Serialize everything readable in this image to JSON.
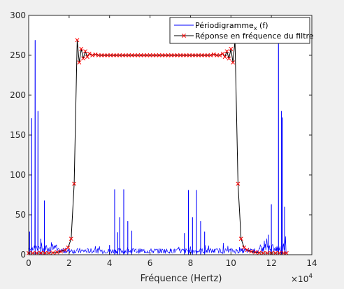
{
  "chart_data": {
    "type": "line",
    "xlabel": "Fréquence (Hertz)",
    "x_exponent_label": "×10",
    "x_exponent_power": "4",
    "xlim": [
      0,
      140000
    ],
    "ylim": [
      0,
      300
    ],
    "xticks": [
      0,
      20000,
      40000,
      60000,
      80000,
      100000,
      120000,
      140000
    ],
    "xtick_labels": [
      "0",
      "2",
      "4",
      "6",
      "8",
      "10",
      "12",
      "14"
    ],
    "yticks": [
      0,
      50,
      100,
      150,
      200,
      250,
      300
    ],
    "grid": false,
    "legend_position": "top-right",
    "series": [
      {
        "name": "Périodigramme",
        "name_subscript": "x",
        "name_suffix": " (f)",
        "color": "#0000ff",
        "style": "line",
        "baseline_approx": 5,
        "peaks": [
          {
            "x": 1500,
            "y": 171
          },
          {
            "x": 3200,
            "y": 269
          },
          {
            "x": 4600,
            "y": 180
          },
          {
            "x": 7800,
            "y": 68
          },
          {
            "x": 500,
            "y": 29
          },
          {
            "x": 6000,
            "y": 20
          },
          {
            "x": 42500,
            "y": 82
          },
          {
            "x": 47000,
            "y": 82
          },
          {
            "x": 45000,
            "y": 47
          },
          {
            "x": 49000,
            "y": 42
          },
          {
            "x": 51000,
            "y": 30
          },
          {
            "x": 44000,
            "y": 28
          },
          {
            "x": 40000,
            "y": 12
          },
          {
            "x": 79000,
            "y": 81
          },
          {
            "x": 83000,
            "y": 81
          },
          {
            "x": 81000,
            "y": 47
          },
          {
            "x": 85000,
            "y": 42
          },
          {
            "x": 87000,
            "y": 29
          },
          {
            "x": 77000,
            "y": 27
          },
          {
            "x": 120000,
            "y": 63
          },
          {
            "x": 123500,
            "y": 268
          },
          {
            "x": 125500,
            "y": 172
          },
          {
            "x": 125000,
            "y": 180
          },
          {
            "x": 126500,
            "y": 60
          },
          {
            "x": 118500,
            "y": 25
          }
        ]
      },
      {
        "name": "Réponse en fréquence du filtre",
        "color": "#000000",
        "marker_color": "#ff0000",
        "marker": "x",
        "points": [
          [
            0,
            2
          ],
          [
            2000,
            2
          ],
          [
            4000,
            2
          ],
          [
            6000,
            2
          ],
          [
            8000,
            2
          ],
          [
            10000,
            2
          ],
          [
            12000,
            2.5
          ],
          [
            14000,
            3
          ],
          [
            16000,
            4
          ],
          [
            18000,
            6
          ],
          [
            19500,
            9
          ],
          [
            21000,
            20
          ],
          [
            22500,
            89
          ],
          [
            24000,
            269
          ],
          [
            25000,
            241
          ],
          [
            26000,
            258
          ],
          [
            27000,
            246
          ],
          [
            28000,
            255
          ],
          [
            29000,
            248
          ],
          [
            30000,
            252
          ],
          [
            31500,
            250
          ],
          [
            33000,
            251
          ],
          [
            34500,
            250
          ],
          [
            36000,
            250
          ],
          [
            37500,
            250
          ],
          [
            39000,
            250
          ],
          [
            40500,
            250
          ],
          [
            42000,
            250
          ],
          [
            43500,
            250
          ],
          [
            45000,
            250
          ],
          [
            46500,
            250
          ],
          [
            48000,
            250
          ],
          [
            49500,
            250
          ],
          [
            51000,
            250
          ],
          [
            52500,
            250
          ],
          [
            54000,
            250
          ],
          [
            55500,
            250
          ],
          [
            57000,
            250
          ],
          [
            58500,
            250
          ],
          [
            60000,
            250
          ],
          [
            61500,
            250
          ],
          [
            63000,
            250
          ],
          [
            64500,
            250
          ],
          [
            66000,
            250
          ],
          [
            67500,
            250
          ],
          [
            69000,
            250
          ],
          [
            70500,
            250
          ],
          [
            72000,
            250
          ],
          [
            73500,
            250
          ],
          [
            75000,
            250
          ],
          [
            76500,
            250
          ],
          [
            78000,
            250
          ],
          [
            79500,
            250
          ],
          [
            81000,
            250
          ],
          [
            82500,
            250
          ],
          [
            84000,
            250
          ],
          [
            85500,
            250
          ],
          [
            87000,
            250
          ],
          [
            88500,
            250
          ],
          [
            90000,
            250
          ],
          [
            91500,
            251
          ],
          [
            93000,
            250
          ],
          [
            94500,
            250
          ],
          [
            96000,
            252
          ],
          [
            97000,
            248
          ],
          [
            98000,
            255
          ],
          [
            99000,
            246
          ],
          [
            100000,
            258
          ],
          [
            101000,
            241
          ],
          [
            102000,
            269
          ],
          [
            103500,
            89
          ],
          [
            105000,
            20
          ],
          [
            106500,
            9
          ],
          [
            108000,
            6
          ],
          [
            110000,
            4
          ],
          [
            112000,
            3
          ],
          [
            114000,
            2.5
          ],
          [
            116000,
            2
          ],
          [
            118000,
            2
          ],
          [
            120000,
            2
          ],
          [
            122000,
            2
          ],
          [
            124000,
            2
          ],
          [
            126000,
            2
          ],
          [
            127500,
            2
          ]
        ]
      }
    ]
  }
}
